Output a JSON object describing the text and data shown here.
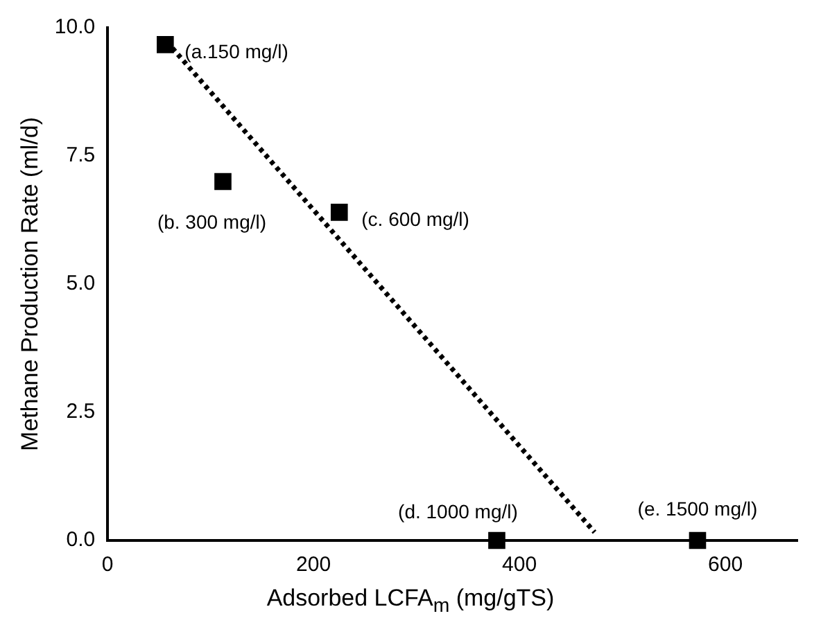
{
  "chart_data": {
    "type": "scatter",
    "xlabel": "Adsorbed LCFA$_{m}$ (mg/gTS)",
    "ylabel": "Methane Production Rate (ml/d)",
    "xlim": [
      0,
      670
    ],
    "ylim": [
      0,
      10
    ],
    "xticks": [
      0,
      200,
      400,
      600
    ],
    "yticks": [
      {
        "value": 0,
        "label": "0.0"
      },
      {
        "value": 2.5,
        "label": "2.5"
      },
      {
        "value": 5,
        "label": "5.0"
      },
      {
        "value": 7.5,
        "label": "7.5"
      },
      {
        "value": 10,
        "label": "10.0"
      }
    ],
    "grid": false,
    "legend": false,
    "marker": "square",
    "series": [
      {
        "type": "scatter",
        "color": "#000000",
        "x": [
          56,
          112,
          225,
          378,
          573
        ],
        "values": [
          9.67,
          7.0,
          6.4,
          0,
          0
        ]
      },
      {
        "type": "line",
        "color": "#000000",
        "line_style": "dotted",
        "marker": "none",
        "x": [
          63,
          473
        ],
        "values": [
          9.6,
          0.16
        ]
      }
    ],
    "annotations": [
      {
        "text": "(a.150 mg/l)",
        "x": 56,
        "y": 9.67
      },
      {
        "text": "(b. 300 mg/l)",
        "x": 112,
        "y": 7.0
      },
      {
        "text": "(c. 600 mg/l)",
        "x": 225,
        "y": 6.4
      },
      {
        "text": "(d. 1000 mg/l)",
        "x": 378,
        "y": 0
      },
      {
        "text": "(e. 1500 mg/l)",
        "x": 573,
        "y": 0
      }
    ]
  }
}
